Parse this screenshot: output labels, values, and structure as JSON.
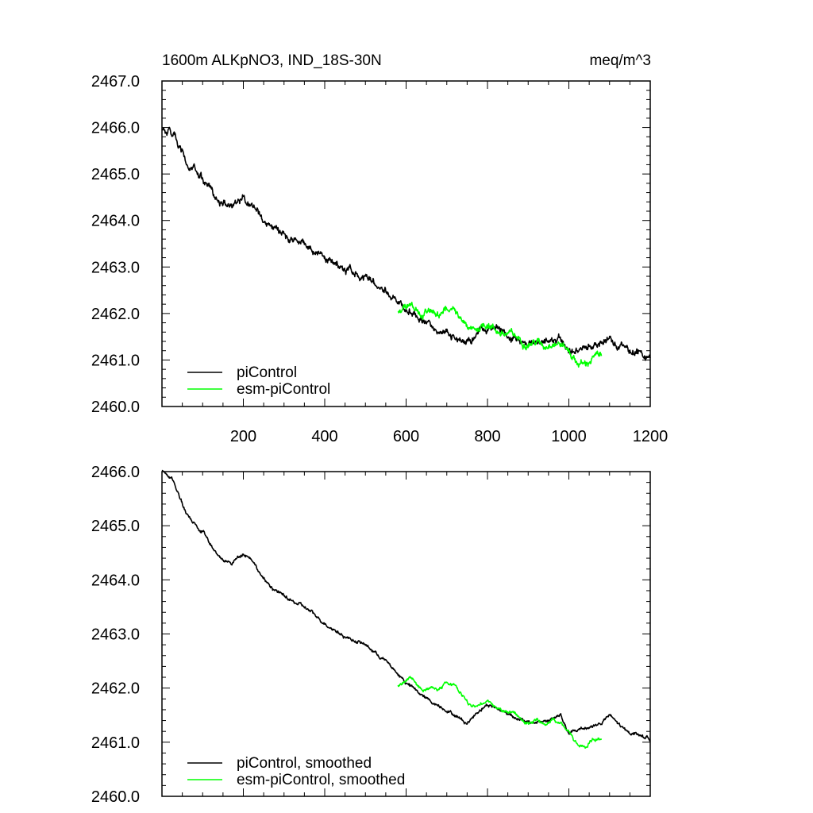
{
  "chart_data": [
    {
      "type": "line",
      "title_left": "1600m ALKpNO3, IND_18S-30N",
      "title_right": "meq/m^3",
      "xlim": [
        0,
        1200
      ],
      "ylim": [
        2460.0,
        2467.0
      ],
      "xticks": [
        200,
        400,
        600,
        800,
        1000,
        1200
      ],
      "xtick_labels": [
        "200",
        "400",
        "600",
        "800",
        "1000",
        "1200"
      ],
      "yticks": [
        2460.0,
        2461.0,
        2462.0,
        2463.0,
        2464.0,
        2465.0,
        2466.0,
        2467.0
      ],
      "ytick_labels": [
        "2460.0",
        "2461.0",
        "2462.0",
        "2463.0",
        "2464.0",
        "2465.0",
        "2466.0",
        "2467.0"
      ],
      "noise": 0.09,
      "series": [
        {
          "name": "piControl",
          "color": "#000000",
          "x": [
            0,
            30,
            60,
            100,
            140,
            170,
            200,
            220,
            250,
            280,
            300,
            320,
            350,
            400,
            450,
            500,
            550,
            600,
            650,
            700,
            750,
            780,
            800,
            830,
            860,
            900,
            950,
            980,
            1000,
            1030,
            1060,
            1080,
            1100,
            1140,
            1170,
            1200
          ],
          "y": [
            2466.0,
            2465.8,
            2465.2,
            2464.9,
            2464.4,
            2464.3,
            2464.5,
            2464.4,
            2464.0,
            2463.8,
            2463.7,
            2463.6,
            2463.5,
            2463.2,
            2462.95,
            2462.8,
            2462.5,
            2462.1,
            2461.8,
            2461.6,
            2461.35,
            2461.6,
            2461.7,
            2461.6,
            2461.5,
            2461.35,
            2461.4,
            2461.5,
            2461.15,
            2461.25,
            2461.3,
            2461.35,
            2461.5,
            2461.2,
            2461.15,
            2461.05
          ]
        },
        {
          "name": "esm-piControl",
          "color": "#00ff00",
          "x": [
            580,
            610,
            640,
            660,
            680,
            700,
            720,
            740,
            760,
            780,
            800,
            820,
            840,
            860,
            880,
            900,
            920,
            940,
            960,
            980,
            1000,
            1020,
            1040,
            1060,
            1080
          ],
          "y": [
            2462.05,
            2462.2,
            2461.95,
            2462.05,
            2461.95,
            2462.1,
            2462.05,
            2461.85,
            2461.65,
            2461.7,
            2461.8,
            2461.65,
            2461.55,
            2461.55,
            2461.45,
            2461.35,
            2461.4,
            2461.3,
            2461.4,
            2461.35,
            2461.2,
            2460.95,
            2460.9,
            2461.05,
            2461.1
          ]
        }
      ],
      "legend": [
        "piControl",
        "esm-piControl"
      ],
      "legend_position": "bottom-left"
    },
    {
      "type": "line",
      "xlim": [
        0,
        1200
      ],
      "ylim": [
        2460.0,
        2466.0
      ],
      "xticks": [
        200,
        400,
        600,
        800,
        1000,
        1200
      ],
      "yticks": [
        2460.0,
        2461.0,
        2462.0,
        2463.0,
        2464.0,
        2465.0,
        2466.0
      ],
      "ytick_labels": [
        "2460.0",
        "2461.0",
        "2462.0",
        "2463.0",
        "2464.0",
        "2465.0",
        "2466.0"
      ],
      "noise": 0.035,
      "series": [
        {
          "name": "piControl, smoothed",
          "color": "#000000",
          "x": [
            0,
            30,
            60,
            100,
            140,
            170,
            200,
            220,
            250,
            280,
            300,
            320,
            350,
            400,
            450,
            500,
            550,
            600,
            650,
            700,
            750,
            780,
            800,
            830,
            860,
            900,
            950,
            980,
            1000,
            1030,
            1060,
            1080,
            1100,
            1140,
            1170,
            1200
          ],
          "y": [
            2466.0,
            2465.8,
            2465.2,
            2464.9,
            2464.4,
            2464.3,
            2464.5,
            2464.4,
            2464.0,
            2463.8,
            2463.7,
            2463.6,
            2463.5,
            2463.2,
            2462.95,
            2462.8,
            2462.5,
            2462.1,
            2461.8,
            2461.6,
            2461.35,
            2461.6,
            2461.7,
            2461.6,
            2461.5,
            2461.35,
            2461.4,
            2461.5,
            2461.15,
            2461.25,
            2461.3,
            2461.35,
            2461.5,
            2461.2,
            2461.15,
            2461.05
          ]
        },
        {
          "name": "esm-piControl, smoothed",
          "color": "#00ff00",
          "x": [
            580,
            610,
            640,
            660,
            680,
            700,
            720,
            740,
            760,
            780,
            800,
            820,
            840,
            860,
            880,
            900,
            920,
            940,
            960,
            980,
            1000,
            1020,
            1040,
            1060,
            1080
          ],
          "y": [
            2462.05,
            2462.2,
            2461.95,
            2462.05,
            2461.95,
            2462.1,
            2462.05,
            2461.85,
            2461.65,
            2461.7,
            2461.8,
            2461.65,
            2461.55,
            2461.55,
            2461.45,
            2461.35,
            2461.4,
            2461.3,
            2461.4,
            2461.35,
            2461.2,
            2460.95,
            2460.9,
            2461.05,
            2461.1
          ]
        }
      ],
      "legend": [
        "piControl, smoothed",
        "esm-piControl, smoothed"
      ],
      "legend_position": "bottom-left"
    }
  ]
}
